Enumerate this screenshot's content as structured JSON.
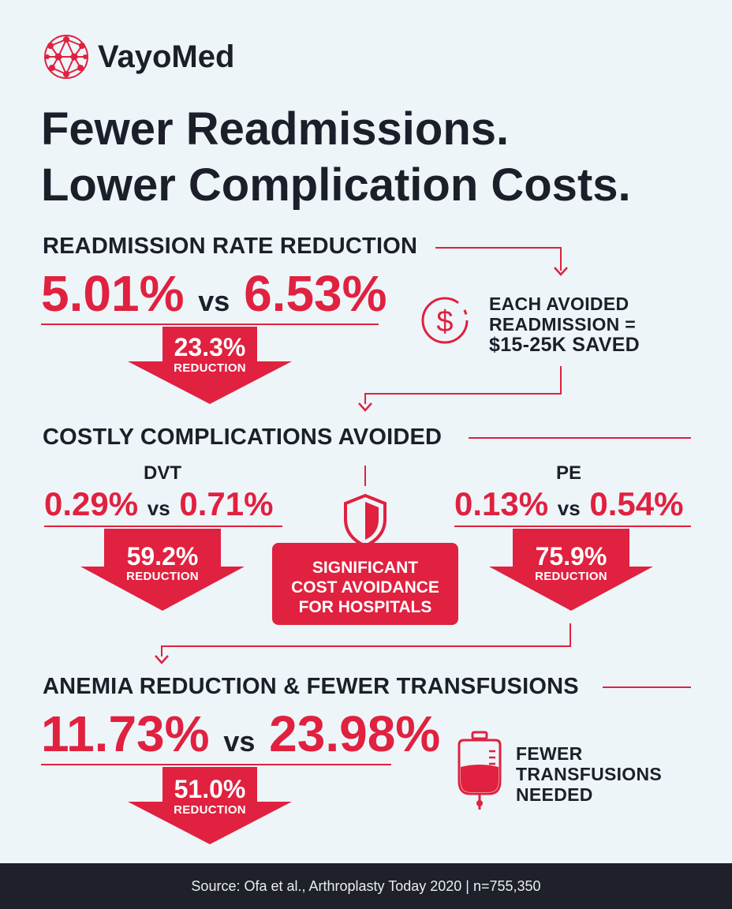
{
  "brand": {
    "name": "VayoMed",
    "logo_icon": "network-sphere-icon"
  },
  "headline": {
    "line1": "Fewer Readmissions.",
    "line2": "Lower Complication Costs."
  },
  "colors": {
    "accent": "#e0213f",
    "text": "#1c1f2a",
    "background": "#eef5f9",
    "footer": "#1e2129"
  },
  "readmission": {
    "heading": "READMISSION RATE REDUCTION",
    "value_a": "5.01%",
    "vs": "vs",
    "value_b": "6.53%",
    "reduction_pct": "23.3%",
    "reduction_label": "REDUCTION",
    "savings": {
      "icon": "dollar-circle-icon",
      "line1": "EACH AVOIDED",
      "line2": "READMISSION =",
      "line3": "$15-25K SAVED"
    }
  },
  "complications": {
    "heading": "COSTLY COMPLICATIONS AVOIDED",
    "dvt": {
      "title": "DVT",
      "value_a": "0.29%",
      "vs": "vs",
      "value_b": "0.71%",
      "reduction_pct": "59.2%",
      "reduction_label": "REDUCTION"
    },
    "pe": {
      "title": "PE",
      "value_a": "0.13%",
      "vs": "vs",
      "value_b": "0.54%",
      "reduction_pct": "75.9%",
      "reduction_label": "REDUCTION"
    },
    "center": {
      "icon": "shield-icon",
      "line1": "SIGNIFICANT",
      "line2": "COST AVOIDANCE",
      "line3": "FOR HOSPITALS"
    }
  },
  "anemia": {
    "heading": "ANEMIA REDUCTION & FEWER TRANSFUSIONS",
    "value_a": "11.73%",
    "vs": "vs",
    "value_b": "23.98%",
    "reduction_pct": "51.0%",
    "reduction_label": "REDUCTION",
    "transfusion": {
      "icon": "blood-bag-icon",
      "line1": "FEWER",
      "line2": "TRANSFUSIONS",
      "line3": "NEEDED"
    }
  },
  "footer": {
    "source": "Source: Ofa et al., Arthroplasty Today 2020 | n=755,350"
  }
}
